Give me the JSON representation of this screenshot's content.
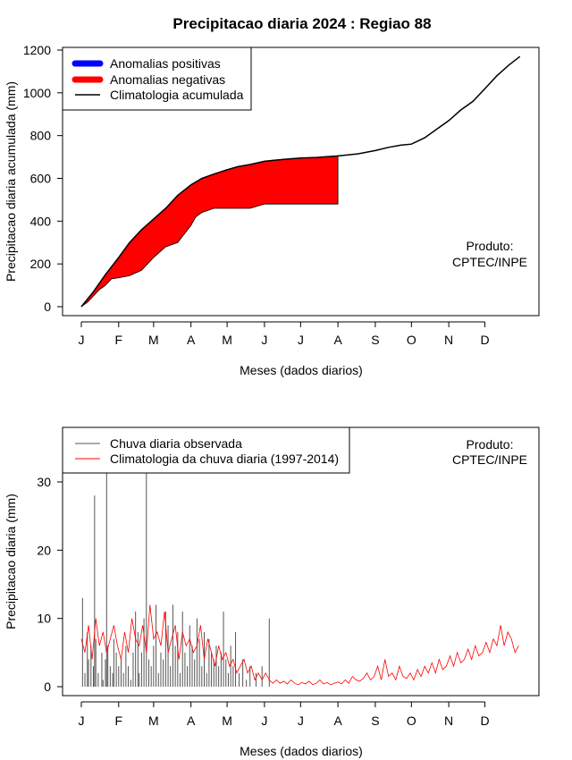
{
  "chart_data": [
    {
      "type": "area",
      "title": "Precipitacao diaria 2024 : Regiao 88",
      "xlabel": "Meses (dados diarios)",
      "ylabel": "Precipitacao diaria acumulada (mm)",
      "month_labels": [
        "J",
        "F",
        "M",
        "A",
        "M",
        "J",
        "J",
        "A",
        "S",
        "O",
        "N",
        "D"
      ],
      "month_start_days": [
        0,
        31,
        60,
        91,
        121,
        152,
        182,
        213,
        244,
        274,
        305,
        335
      ],
      "xlim": [
        0,
        365
      ],
      "ylim": [
        0,
        1200
      ],
      "yticks": [
        0,
        200,
        400,
        600,
        800,
        1000,
        1200
      ],
      "observed_last_day": 213,
      "climatology_accumulated": {
        "name": "Climatologia acumulada",
        "days": [
          0,
          10,
          20,
          31,
          40,
          50,
          60,
          70,
          80,
          91,
          100,
          110,
          121,
          130,
          140,
          152,
          160,
          170,
          182,
          195,
          213,
          230,
          244,
          255,
          265,
          274,
          285,
          295,
          305,
          315,
          325,
          335,
          345,
          355,
          364
        ],
        "values": [
          0,
          70,
          150,
          230,
          300,
          360,
          410,
          460,
          520,
          570,
          600,
          620,
          640,
          655,
          665,
          680,
          685,
          690,
          695,
          698,
          705,
          715,
          730,
          745,
          755,
          760,
          790,
          830,
          870,
          920,
          960,
          1020,
          1080,
          1130,
          1170
        ]
      },
      "observed_accumulated": {
        "days": [
          0,
          5,
          10,
          15,
          20,
          25,
          31,
          40,
          50,
          60,
          70,
          80,
          91,
          95,
          100,
          110,
          121,
          130,
          140,
          152,
          165,
          182,
          195,
          213
        ],
        "values": [
          0,
          20,
          50,
          80,
          100,
          130,
          135,
          145,
          170,
          230,
          280,
          300,
          380,
          420,
          440,
          460,
          460,
          460,
          460,
          480,
          480,
          480,
          480,
          480
        ]
      },
      "legend": [
        {
          "label": "Anomalias positivas",
          "color": "#0000ff"
        },
        {
          "label": "Anomalias negativas",
          "color": "#ff0000"
        },
        {
          "label": "Climatologia acumulada",
          "color": "#000000"
        }
      ],
      "annotation": [
        "Produto:",
        "CPTEC/INPE"
      ]
    },
    {
      "type": "bar",
      "xlabel": "Meses (dados diarios)",
      "ylabel": "Precipitacao diaria (mm)",
      "month_labels": [
        "J",
        "F",
        "M",
        "A",
        "M",
        "J",
        "J",
        "A",
        "S",
        "O",
        "N",
        "D"
      ],
      "month_start_days": [
        0,
        31,
        60,
        91,
        121,
        152,
        182,
        213,
        244,
        274,
        305,
        335
      ],
      "xlim": [
        0,
        365
      ],
      "ylim": [
        0,
        35
      ],
      "yticks": [
        0,
        10,
        20,
        30
      ],
      "observed_daily": {
        "name": "Chuva diaria observada",
        "color": "#555555",
        "days": [
          1,
          3,
          5,
          6,
          8,
          10,
          11,
          12,
          14,
          17,
          18,
          20,
          21,
          22,
          24,
          26,
          27,
          29,
          31,
          33,
          35,
          37,
          39,
          41,
          43,
          45,
          47,
          48,
          50,
          52,
          54,
          56,
          58,
          60,
          62,
          64,
          66,
          68,
          70,
          72,
          74,
          76,
          78,
          80,
          82,
          84,
          86,
          88,
          90,
          92,
          94,
          96,
          98,
          100,
          102,
          104,
          106,
          108,
          110,
          112,
          114,
          116,
          118,
          120,
          122,
          124,
          126,
          128,
          131,
          134,
          137,
          140,
          145,
          150,
          156
        ],
        "values": [
          13,
          2,
          8,
          4,
          6,
          3,
          28,
          7,
          2,
          5,
          1,
          4,
          35,
          6,
          3,
          2,
          7,
          5,
          3,
          4,
          2,
          6,
          3,
          1,
          5,
          11,
          8,
          2,
          5,
          10,
          35,
          4,
          3,
          6,
          12,
          2,
          5,
          4,
          11,
          9,
          3,
          12,
          6,
          8,
          2,
          11,
          5,
          3,
          9,
          6,
          4,
          10,
          7,
          3,
          8,
          2,
          7,
          5,
          4,
          6,
          3,
          5,
          11,
          4,
          2,
          6,
          3,
          8,
          2,
          4,
          1,
          3,
          2,
          3,
          10
        ]
      },
      "climatology_daily": {
        "name": "Climatologia da chuva diaria (1997-2014)",
        "color": "#ff0000",
        "days": [
          0,
          3,
          6,
          9,
          12,
          15,
          18,
          21,
          24,
          27,
          30,
          33,
          36,
          39,
          42,
          45,
          48,
          51,
          54,
          57,
          60,
          63,
          66,
          69,
          72,
          75,
          78,
          81,
          84,
          87,
          90,
          93,
          96,
          99,
          102,
          105,
          108,
          111,
          114,
          117,
          120,
          123,
          126,
          129,
          132,
          135,
          138,
          141,
          144,
          147,
          150,
          153,
          156,
          159,
          162,
          165,
          168,
          171,
          174,
          177,
          180,
          183,
          186,
          189,
          192,
          195,
          198,
          201,
          204,
          207,
          210,
          213,
          216,
          219,
          222,
          225,
          228,
          231,
          234,
          237,
          240,
          243,
          246,
          249,
          252,
          255,
          258,
          261,
          264,
          267,
          270,
          273,
          276,
          279,
          282,
          285,
          288,
          291,
          294,
          297,
          300,
          303,
          306,
          309,
          312,
          315,
          318,
          321,
          324,
          327,
          330,
          333,
          336,
          339,
          342,
          345,
          348,
          351,
          354,
          357,
          360,
          363
        ],
        "values": [
          7,
          5,
          9,
          4,
          10,
          6,
          8,
          5,
          7,
          9,
          6,
          4,
          8,
          5,
          10,
          7,
          6,
          9,
          5,
          12,
          7,
          8,
          6,
          11,
          5,
          7,
          9,
          4,
          8,
          6,
          7,
          5,
          6,
          9,
          4,
          7,
          5,
          3,
          6,
          4,
          5,
          3,
          4,
          2,
          3,
          4,
          2,
          3,
          1,
          2,
          1,
          2,
          1,
          0.5,
          1,
          0.5,
          0.8,
          0.4,
          1,
          0.5,
          0.3,
          0.6,
          0.4,
          0.8,
          0.3,
          0.5,
          1,
          0.4,
          0.6,
          0.3,
          0.5,
          0.7,
          0.4,
          1,
          0.5,
          1.5,
          1,
          0.8,
          1.2,
          2,
          1,
          1.5,
          3,
          1,
          4,
          1.5,
          2,
          1,
          3,
          1.5,
          1.2,
          2,
          1,
          2.5,
          1.5,
          3,
          2,
          3.5,
          2,
          4,
          2.5,
          3,
          4.5,
          3,
          5,
          3.5,
          4,
          5.5,
          4,
          6,
          4.5,
          5,
          6.5,
          5,
          7,
          6,
          9,
          6,
          8,
          7,
          5,
          6
        ],
        "clip_top": 30.5
      },
      "legend": [
        {
          "label": "Chuva diaria observada",
          "color": "#555555"
        },
        {
          "label": "Climatologia da chuva diaria (1997-2014)",
          "color": "#ff0000"
        }
      ],
      "annotation": [
        "Produto:",
        "CPTEC/INPE"
      ]
    }
  ]
}
